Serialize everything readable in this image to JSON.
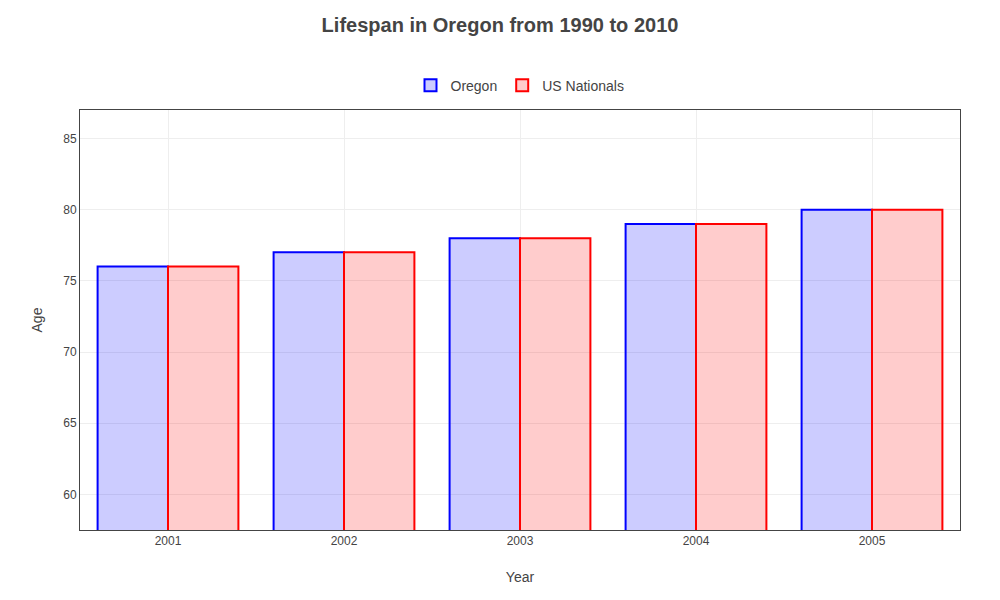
{
  "chart_data": {
    "type": "bar",
    "title": "Lifespan in Oregon from 1990 to 2010",
    "x_label": "Year",
    "y_label": "Age",
    "categories": [
      "2001",
      "2002",
      "2003",
      "2004",
      "2005"
    ],
    "series": [
      {
        "name": "Oregon",
        "color": "#0000ff",
        "values": [
          76,
          77,
          78,
          79,
          80
        ]
      },
      {
        "name": "US Nationals",
        "color": "#ff0000",
        "values": [
          76,
          77,
          78,
          79,
          80
        ]
      }
    ],
    "ylim": [
      57.5,
      87
    ],
    "yticks": [
      60,
      65,
      70,
      75,
      80,
      85
    ],
    "grid": true,
    "legend": "top"
  }
}
